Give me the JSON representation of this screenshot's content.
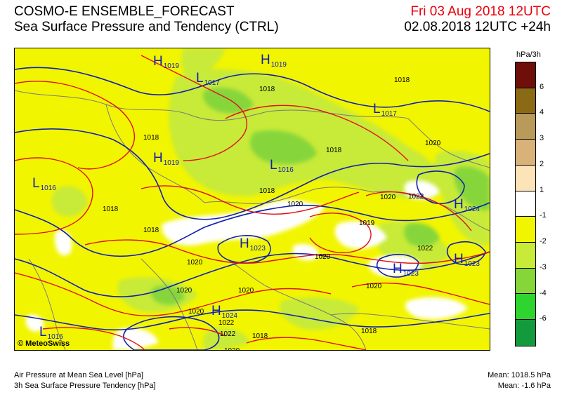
{
  "header": {
    "title_line1": "COSMO-E ENSEMBLE_FORECAST",
    "title_line2": "Sea Surface Pressure and Tendency (CTRL)",
    "valid_date": "Fri 03 Aug 2018 12UTC",
    "run_info": "02.08.2018 12UTC +24h"
  },
  "map": {
    "copyright": "MeteoSwiss",
    "copyright_symbol": "©",
    "pressure_centers": [
      {
        "type": "H",
        "value": "1019"
      },
      {
        "type": "L",
        "value": "1017"
      },
      {
        "type": "H",
        "value": "1019"
      },
      {
        "type": "L",
        "value": "1017"
      },
      {
        "type": "H",
        "value": "1019"
      },
      {
        "type": "L",
        "value": "1016"
      },
      {
        "type": "L",
        "value": "1016"
      },
      {
        "type": "H",
        "value": "1024"
      },
      {
        "type": "H",
        "value": "1023"
      },
      {
        "type": "H",
        "value": "1023"
      },
      {
        "type": "H",
        "value": "1023"
      },
      {
        "type": "H",
        "value": "1024"
      },
      {
        "type": "L",
        "value": "1016"
      }
    ],
    "isobar_labels": [
      "1018",
      "1018",
      "1018",
      "1020",
      "1018",
      "1018",
      "1018",
      "1020",
      "1018",
      "1020",
      "1022",
      "1020",
      "1019",
      "1022",
      "1020",
      "1020",
      "1020",
      "1020",
      "1020",
      "1022",
      "1018",
      "1018",
      "1020",
      "1020",
      "1022"
    ],
    "colors": {
      "base_yellow": "#f2f500",
      "light_green": "#c8ea38",
      "green": "#86d63a",
      "isobar_blue": "#1020b0",
      "isobar_red": "#e0101a",
      "border_gray": "#7a7a7a"
    }
  },
  "legend": {
    "unit": "hPa/3h",
    "swatches": [
      {
        "color": "#6e0f0a"
      },
      {
        "color": "#8b6a16"
      },
      {
        "color": "#b89a5a"
      },
      {
        "color": "#d9b27a"
      },
      {
        "color": "#fde4b8"
      },
      {
        "color": "#ffffff"
      },
      {
        "color": "#f2f500"
      },
      {
        "color": "#c8ea38"
      },
      {
        "color": "#86d63a"
      },
      {
        "color": "#2ed52e"
      },
      {
        "color": "#129a3c"
      }
    ],
    "ticks": [
      "6",
      "4",
      "3",
      "2",
      "1",
      "-1",
      "-2",
      "-3",
      "-4",
      "-6"
    ]
  },
  "footer": {
    "line1": "Air Pressure at Mean Sea Level [hPa]",
    "line2": "3h Sea Surface Pressure Tendency [hPa]",
    "mean_pressure": "Mean: 1018.5 hPa",
    "mean_tendency": "Mean:   -1.6 hPa"
  }
}
